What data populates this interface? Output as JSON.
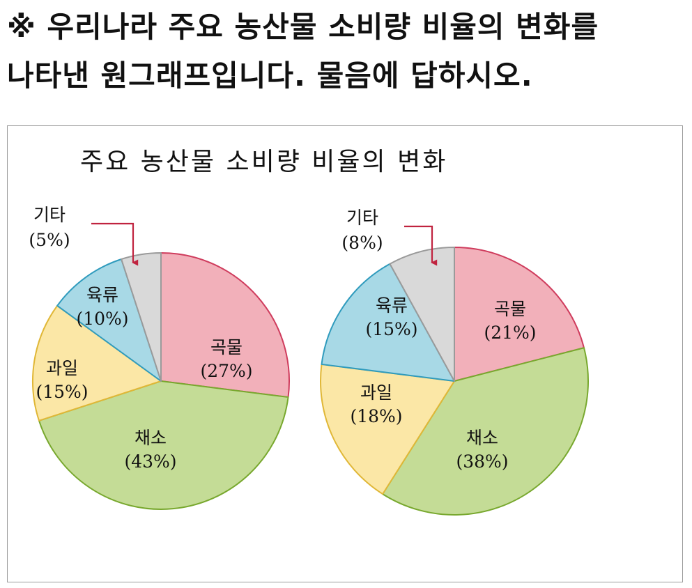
{
  "question": {
    "line1": "※ 우리나라 주요 농산물 소비량 비율의 변화를",
    "line2": "나타낸 원그래프입니다. 물음에 답하시오."
  },
  "chart_data": {
    "type": "pie",
    "title": "주요 농산물 소비량 비율의 변화",
    "colors": {
      "곡물": {
        "fill": "#f2b0ba",
        "stroke": "#cf3c5d"
      },
      "채소": {
        "fill": "#c4dc96",
        "stroke": "#78a82e"
      },
      "과일": {
        "fill": "#fbe7a6",
        "stroke": "#e0b737"
      },
      "육류": {
        "fill": "#a8d9e6",
        "stroke": "#2f9bbd"
      },
      "기타": {
        "fill": "#d9d9d9",
        "stroke": "#9a9a9a"
      }
    },
    "arrow_color": "#c0233f",
    "charts": [
      {
        "slices": [
          {
            "label": "곡물",
            "value": 27,
            "text": "(27%)"
          },
          {
            "label": "채소",
            "value": 43,
            "text": "(43%)"
          },
          {
            "label": "과일",
            "value": 15,
            "text": "(15%)"
          },
          {
            "label": "육류",
            "value": 10,
            "text": "(10%)"
          },
          {
            "label": "기타",
            "value": 5,
            "text": "(5%)"
          }
        ]
      },
      {
        "slices": [
          {
            "label": "곡물",
            "value": 21,
            "text": "(21%)"
          },
          {
            "label": "채소",
            "value": 38,
            "text": "(38%)"
          },
          {
            "label": "과일",
            "value": 18,
            "text": "(18%)"
          },
          {
            "label": "육류",
            "value": 15,
            "text": "(15%)"
          },
          {
            "label": "기타",
            "value": 8,
            "text": "(8%)"
          }
        ]
      }
    ]
  }
}
